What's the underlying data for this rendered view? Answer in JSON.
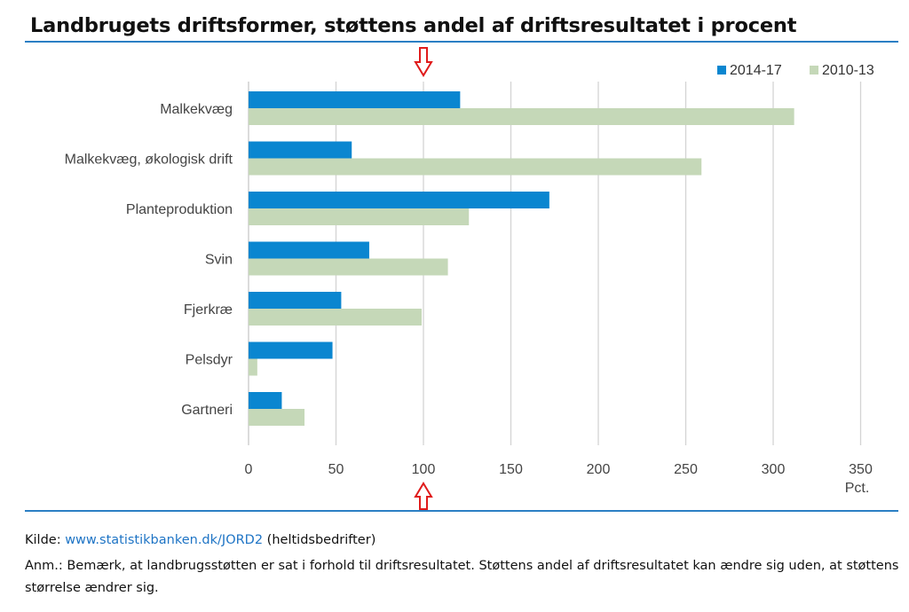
{
  "title": "Landbrugets driftsformer, støttens andel af driftsresultatet i procent",
  "source": {
    "prefix": "Kilde: ",
    "link_text": "www.statistikbanken.dk/JORD2",
    "suffix": " (heltidsbedrifter)"
  },
  "note": "Anm.: Bemærk, at landbrugsstøtten er sat i forhold til driftsresultatet. Støttens andel af driftsresultatet kan ændre sig uden, at støttens størrelse ændrer sig.",
  "chart_data": {
    "type": "bar",
    "orientation": "horizontal",
    "categories": [
      "Malkekvæg",
      "Malkekvæg, økologisk drift",
      "Planteproduktion",
      "Svin",
      "Fjerkræ",
      "Pelsdyr",
      "Gartneri"
    ],
    "series": [
      {
        "name": "2014-17",
        "color": "#0a86d0",
        "values": [
          121,
          59,
          172,
          69,
          53,
          48,
          19
        ]
      },
      {
        "name": "2010-13",
        "color": "#c5d8b8",
        "values": [
          312,
          259,
          126,
          114,
          99,
          5,
          32
        ]
      }
    ],
    "xticks": [
      0,
      50,
      100,
      150,
      200,
      250,
      300,
      350
    ],
    "xlim": [
      0,
      350
    ],
    "xlabel": "Pct.",
    "grid": true,
    "legend": "top-right",
    "annotation": {
      "type": "arrows",
      "at_x": 100,
      "color": "#e01b1b"
    }
  }
}
